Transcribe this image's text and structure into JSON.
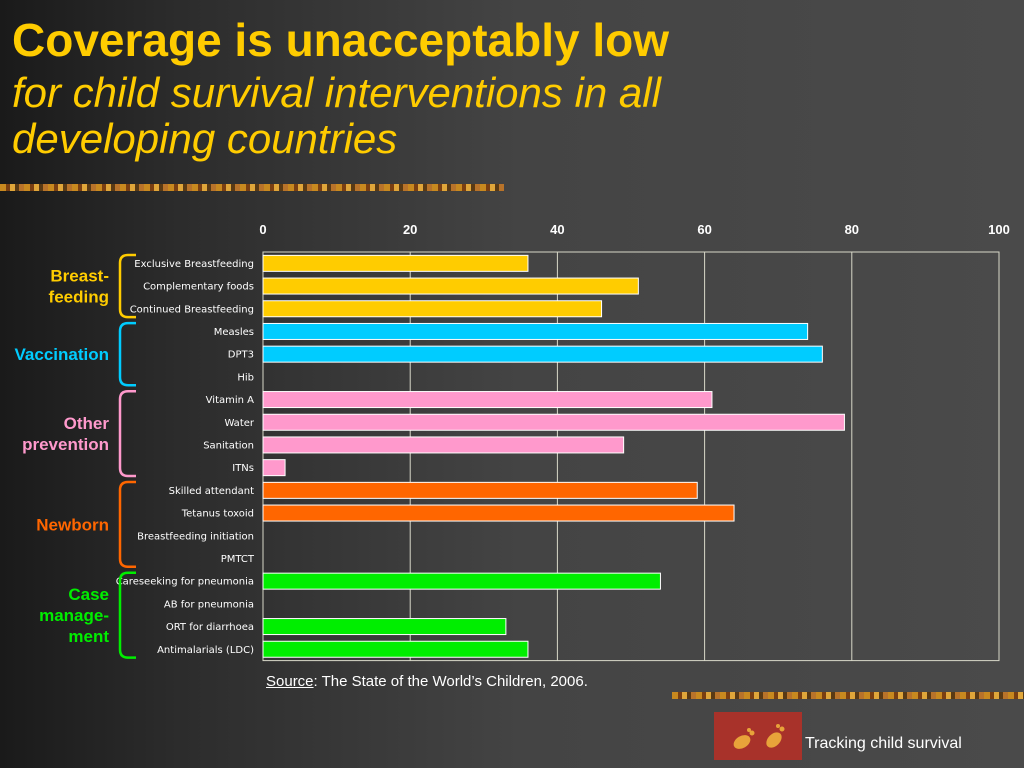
{
  "header": {
    "title": "Coverage is unacceptably low",
    "subtitle": "for child survival interventions in all developing countries"
  },
  "chart_data": {
    "type": "bar",
    "orientation": "horizontal",
    "xlim": [
      0,
      100
    ],
    "x_ticks": [
      "0",
      "20",
      "40",
      "60",
      "80",
      "100"
    ],
    "x_axis_position": "top",
    "grid": true,
    "categories": [
      "Exclusive Breastfeeding",
      "Complementary foods",
      "Continued Breastfeeding",
      "Measles",
      "DPT3",
      "Hib",
      "Vitamin A",
      "Water",
      "Sanitation",
      "ITNs",
      "Skilled attendant",
      "Tetanus toxoid",
      "Breastfeeding initiation",
      "PMTCT",
      "Careseeking for pneumonia",
      "AB for pneumonia",
      "ORT for diarrhoea",
      "Antimalarials (LDC)"
    ],
    "values": [
      36,
      51,
      46,
      74,
      76,
      null,
      61,
      79,
      49,
      3,
      59,
      64,
      null,
      null,
      54,
      null,
      33,
      36
    ],
    "groups": [
      {
        "label": "Breast-\nfeeding",
        "color": "#ffcc00",
        "start": 0,
        "end": 2
      },
      {
        "label": "Vaccination",
        "color": "#00ccff",
        "start": 3,
        "end": 5
      },
      {
        "label": "Other\nprevention",
        "color": "#ff99cc",
        "start": 6,
        "end": 9
      },
      {
        "label": "Newborn",
        "color": "#ff6600",
        "start": 10,
        "end": 13
      },
      {
        "label": "Case\nmanage-\nment",
        "color": "#00ee00",
        "start": 14,
        "end": 17
      }
    ]
  },
  "source": {
    "label": "Source",
    "text": ":  The State of the World’s Children, 2006."
  },
  "footer": {
    "text": "Tracking child survival"
  }
}
